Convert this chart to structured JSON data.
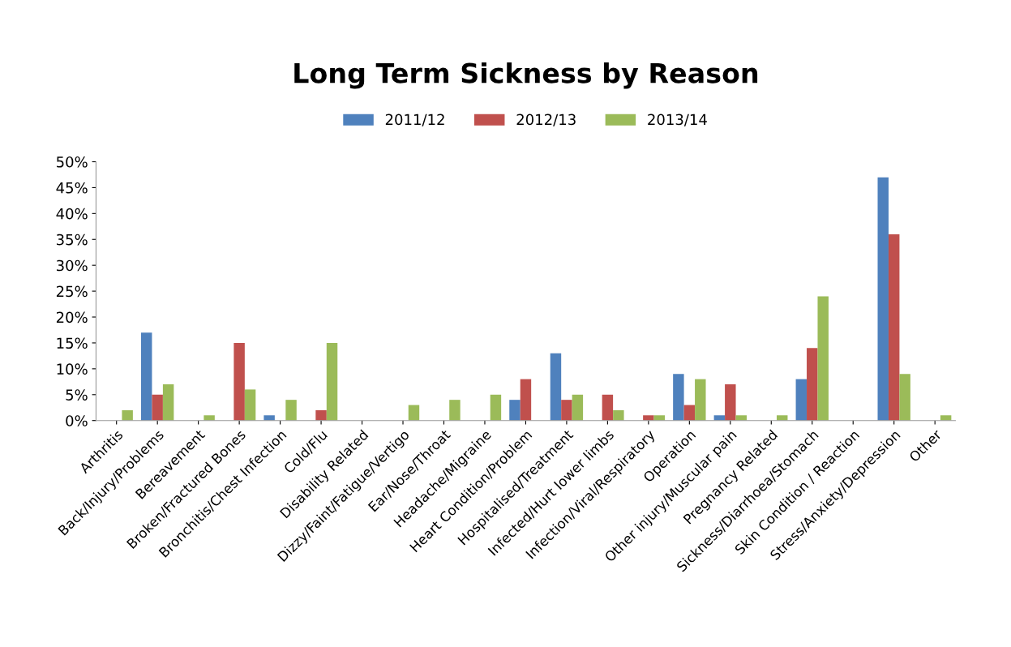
{
  "chart_data": {
    "type": "bar",
    "title": "Long Term Sickness by Reason",
    "categories": [
      "Arthritis",
      "Back/Injury/Problems",
      "Bereavement",
      "Broken/Fractured Bones",
      "Bronchitis/Chest Infection",
      "Cold/Flu",
      "Disability Related",
      "Dizzy/Faint/Fatigue/Vertigo",
      "Ear/Nose/Throat",
      "Headache/Migraine",
      "Heart Condition/Problem",
      "Hospitalised/Treatment",
      "Infected/Hurt lower limbs",
      "Infection/Viral/Respiratory",
      "Operation",
      "Other injury/Muscular pain",
      "Pregnancy Related",
      "Sickness/Diarrhoea/Stomach",
      "Skin Condition / Reaction",
      "Stress/Anxiety/Depression",
      "Other"
    ],
    "series": [
      {
        "name": "2011/12",
        "color": "#4f81bd",
        "values": [
          0,
          17,
          0,
          0,
          1,
          0,
          0,
          0,
          0,
          0,
          4,
          13,
          0,
          0,
          9,
          1,
          0,
          8,
          0,
          47,
          0
        ]
      },
      {
        "name": "2012/13",
        "color": "#c0504d",
        "values": [
          0,
          5,
          0,
          15,
          0,
          2,
          0,
          0,
          0,
          0,
          8,
          4,
          5,
          1,
          3,
          7,
          0,
          14,
          0,
          36,
          0
        ]
      },
      {
        "name": "2013/14",
        "color": "#9bbb59",
        "values": [
          2,
          7,
          1,
          6,
          4,
          15,
          0,
          3,
          4,
          5,
          0,
          5,
          2,
          1,
          8,
          1,
          1,
          24,
          0,
          9,
          1
        ]
      }
    ],
    "ylim": [
      0,
      50
    ],
    "yticks": [
      {
        "value": 0,
        "label": "0%"
      },
      {
        "value": 5,
        "label": "5%"
      },
      {
        "value": 10,
        "label": "10%"
      },
      {
        "value": 15,
        "label": "15%"
      },
      {
        "value": 20,
        "label": "20%"
      },
      {
        "value": 25,
        "label": "25%"
      },
      {
        "value": 30,
        "label": "30%"
      },
      {
        "value": 35,
        "label": "35%"
      },
      {
        "value": 40,
        "label": "40%"
      },
      {
        "value": 45,
        "label": "45%"
      },
      {
        "value": 50,
        "label": "50%"
      }
    ],
    "grid": false,
    "legend": "top"
  }
}
